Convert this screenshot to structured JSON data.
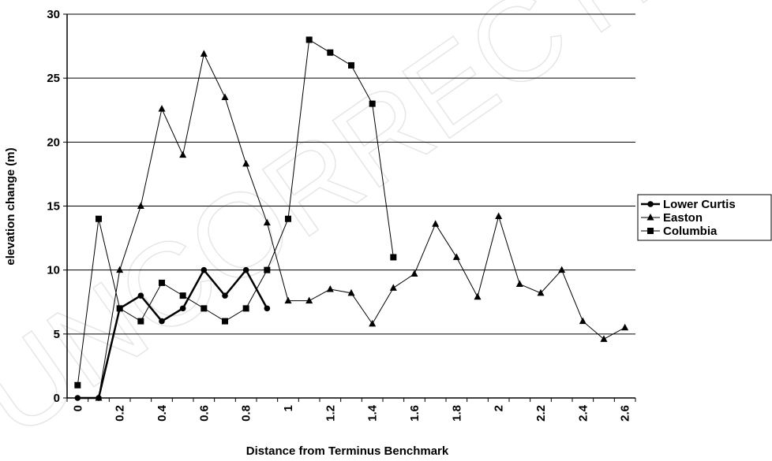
{
  "chart_data": {
    "type": "line",
    "watermark": "UNCORRECTED",
    "xlabel": "Distance from Terminus Benchmark",
    "ylabel": "elevation change (m)",
    "categories": [
      "0",
      null,
      "0.2",
      null,
      "0.4",
      null,
      "0.6",
      null,
      "0.8",
      null,
      "1",
      null,
      "1.2",
      null,
      "1.4",
      null,
      "1.6",
      null,
      "1.8",
      null,
      "2",
      null,
      "2.2",
      null,
      "2.4",
      null,
      "2.6"
    ],
    "ylim": [
      0,
      30
    ],
    "yticks": [
      0,
      5,
      10,
      15,
      20,
      25,
      30
    ],
    "grid": true,
    "legend": "right",
    "series": [
      {
        "name": "Lower Curtis",
        "color": "#000000",
        "marker": "circle",
        "line_width": 2.5,
        "values": [
          0,
          0,
          7,
          8,
          6,
          7,
          10,
          8,
          10,
          7,
          null,
          null,
          null,
          null,
          null,
          null,
          null,
          null,
          null,
          null,
          null,
          null,
          null,
          null,
          null,
          null,
          null
        ]
      },
      {
        "name": "Easton",
        "color": "#000000",
        "marker": "triangle",
        "line_width": 1,
        "values": [
          null,
          0,
          10,
          15,
          22.6,
          19,
          26.9,
          23.5,
          18.3,
          13.7,
          7.6,
          7.6,
          8.5,
          8.2,
          5.8,
          8.6,
          9.7,
          13.6,
          11,
          7.9,
          14.2,
          8.9,
          8.2,
          10,
          6,
          4.6,
          5.5
        ]
      },
      {
        "name": "Columbia",
        "color": "#000000",
        "marker": "square",
        "line_width": 1,
        "values": [
          1,
          14,
          7,
          6,
          9,
          8,
          7,
          6,
          7,
          10,
          14,
          28,
          27,
          26,
          23,
          11,
          null,
          null,
          null,
          null,
          null,
          null,
          null,
          null,
          null,
          null,
          null
        ]
      }
    ]
  }
}
